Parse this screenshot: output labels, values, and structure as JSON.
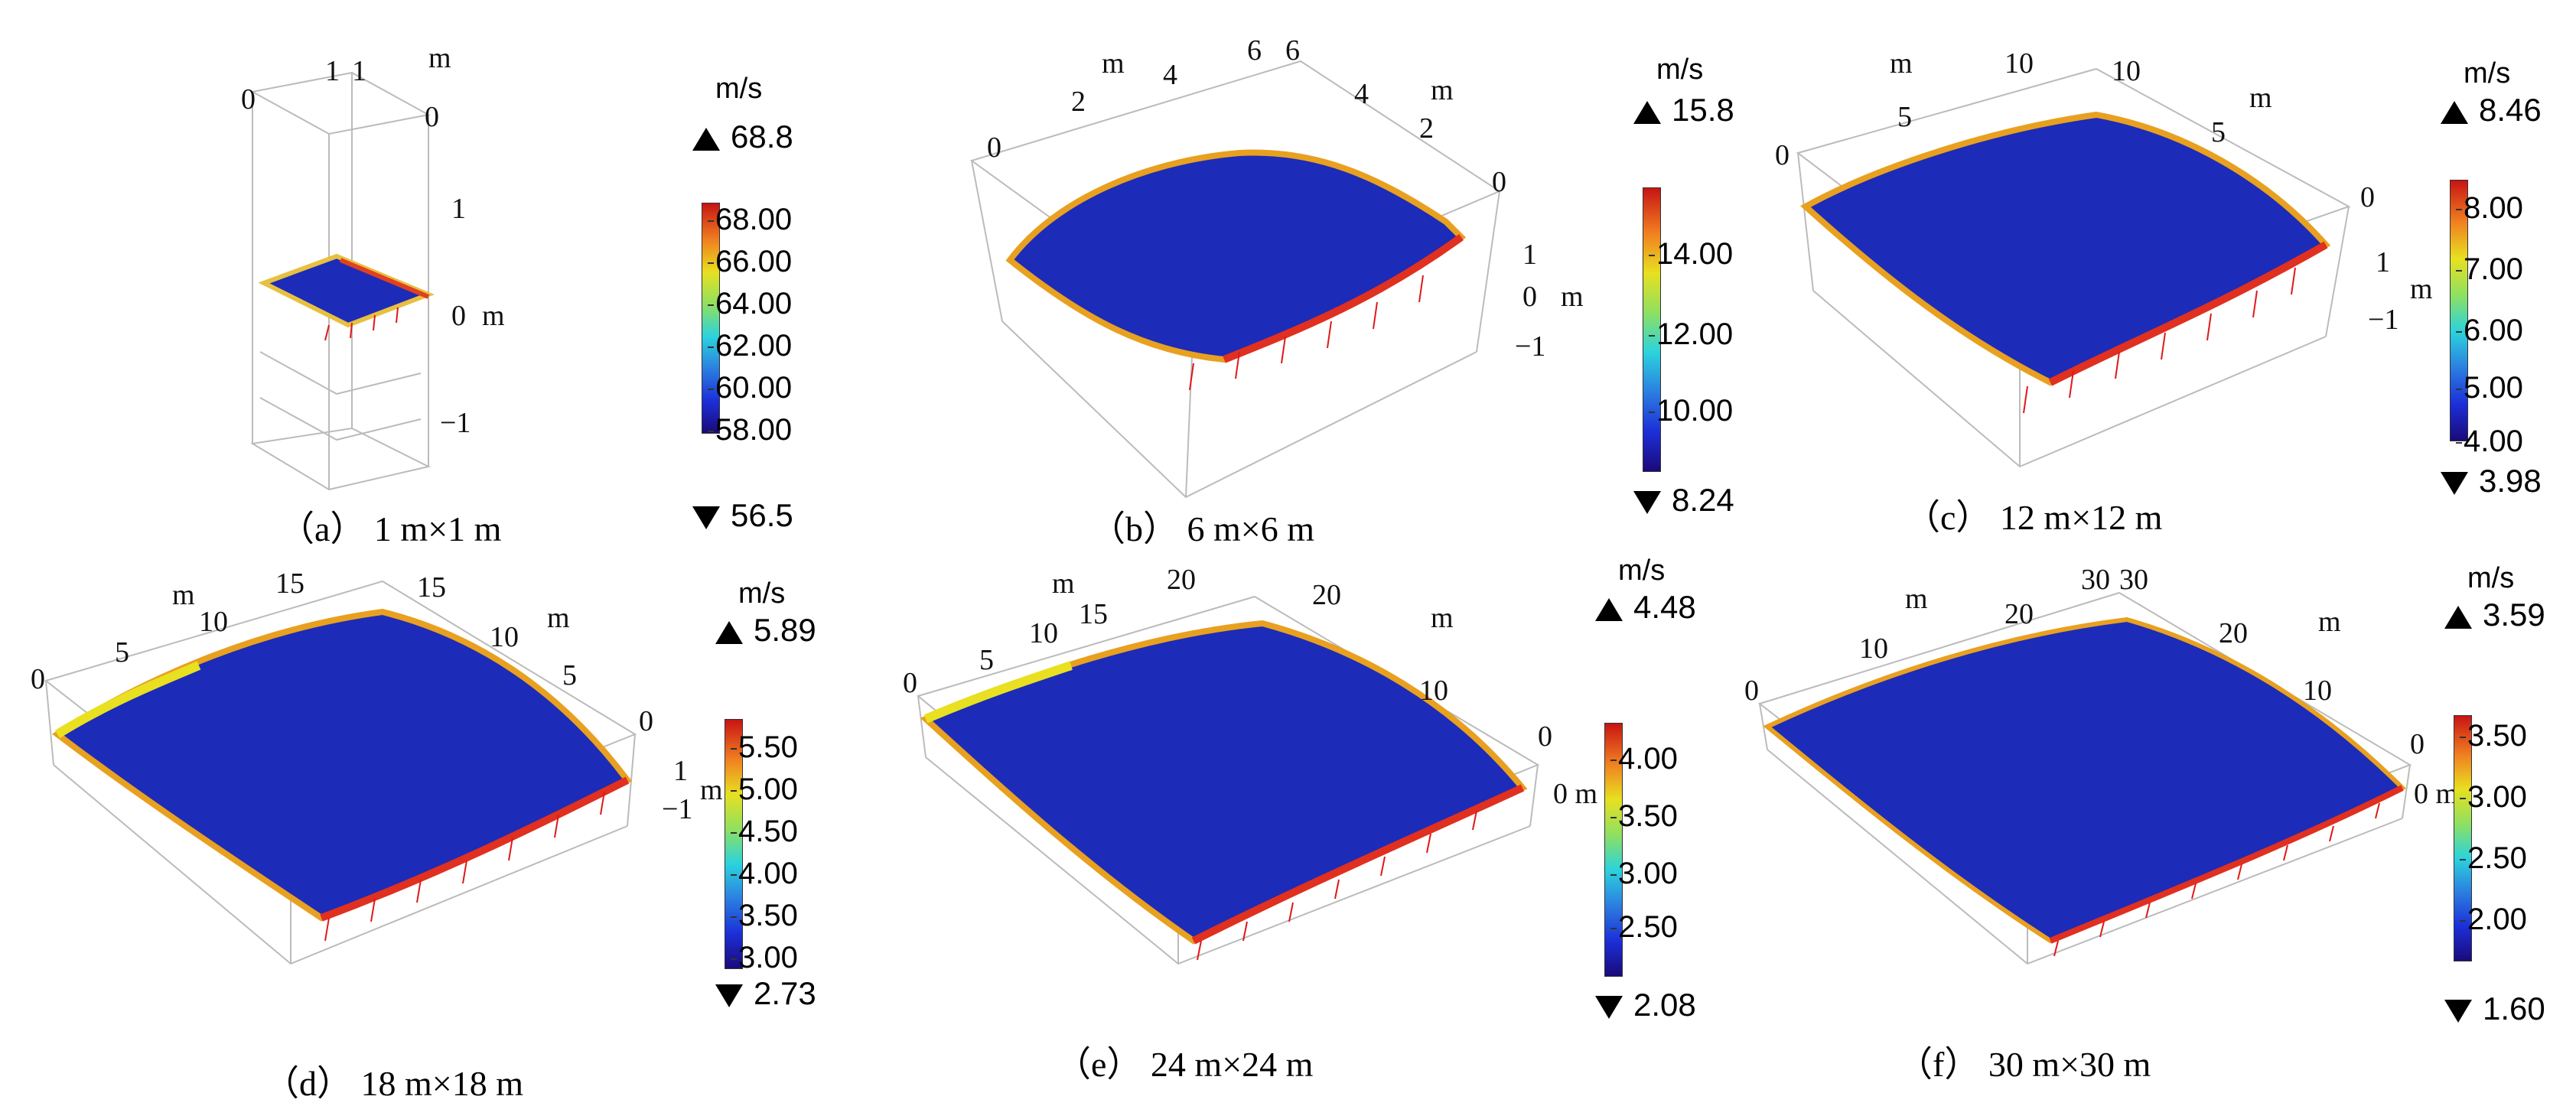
{
  "figure": {
    "panels": [
      {
        "id": "a",
        "caption": "（a） 1 m×1 m",
        "unit": "m/s",
        "max": "68.8",
        "min": "56.5",
        "ticks": [
          "68.00",
          "66.00",
          "64.00",
          "62.00",
          "60.00",
          "58.00"
        ],
        "axis_labels": [
          "0",
          "1",
          "1",
          "m",
          "0",
          "1",
          "0",
          "m",
          "−1"
        ]
      },
      {
        "id": "b",
        "caption": "（b） 6 m×6 m",
        "unit": "m/s",
        "max": "15.8",
        "min": "8.24",
        "ticks": [
          "14.00",
          "12.00",
          "10.00"
        ],
        "axis_labels": [
          "m",
          "2",
          "4",
          "6",
          "6",
          "4",
          "m",
          "2",
          "0",
          "0",
          "1",
          "0",
          "m",
          "−1"
        ]
      },
      {
        "id": "c",
        "caption": "（c） 12 m×12 m",
        "unit": "m/s",
        "max": "8.46",
        "min": "3.98",
        "ticks": [
          "8.00",
          "7.00",
          "6.00",
          "5.00",
          "4.00"
        ],
        "axis_labels": [
          "m",
          "10",
          "10",
          "5",
          "5",
          "m",
          "0",
          "0",
          "1",
          "m",
          "−1"
        ]
      },
      {
        "id": "d",
        "caption": "（d） 18 m×18 m",
        "unit": "m/s",
        "max": "5.89",
        "min": "2.73",
        "ticks": [
          "5.50",
          "5.00",
          "4.50",
          "4.00",
          "3.50",
          "3.00"
        ],
        "axis_labels": [
          "m",
          "15",
          "15",
          "10",
          "10",
          "m",
          "5",
          "5",
          "0",
          "0",
          "1",
          "m",
          "−1"
        ]
      },
      {
        "id": "e",
        "caption": "（e） 24 m×24 m",
        "unit": "m/s",
        "max": "4.48",
        "min": "2.08",
        "ticks": [
          "4.00",
          "3.50",
          "3.00",
          "2.50"
        ],
        "axis_labels": [
          "m",
          "20",
          "20",
          "15",
          "10",
          "m",
          "5",
          "10",
          "0",
          "0",
          "0 m"
        ]
      },
      {
        "id": "f",
        "caption": "（f） 30 m×30 m",
        "unit": "m/s",
        "max": "3.59",
        "min": "1.60",
        "ticks": [
          "3.50",
          "3.00",
          "2.50",
          "2.00"
        ],
        "axis_labels": [
          "30",
          "30",
          "m",
          "20",
          "20",
          "10",
          "m",
          "10",
          "0",
          "0",
          "0 m"
        ]
      }
    ]
  }
}
